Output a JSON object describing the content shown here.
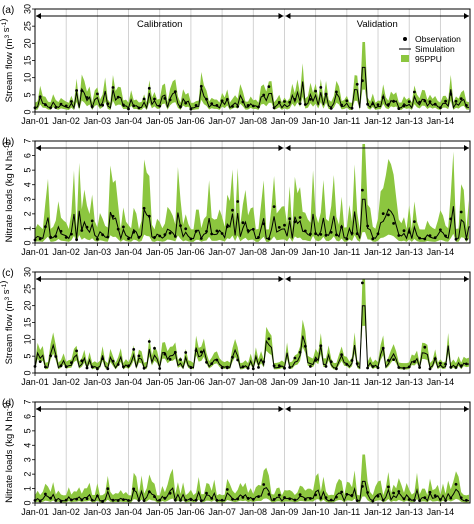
{
  "legend": {
    "observation": "Observation",
    "simulation": "Simulation",
    "ppu": "95PPU"
  },
  "periods": {
    "calibration": "Calibration",
    "validation": "Validation"
  },
  "colors": {
    "band": "#8cc63f",
    "line": "#000000",
    "obs": "#000000",
    "vgrid": "#c8c8c8"
  },
  "chart_data": [
    {
      "panel_label": "(a)",
      "type": "line",
      "ylabel_main": "Stream flow (m",
      "ylabel_sup": "3",
      "ylabel_mid": " s",
      "ylabel_sup2": "-1",
      "ylabel_end": ")",
      "ylim": [
        0,
        30
      ],
      "yticks": [
        "0",
        "5",
        "10",
        "15",
        "20",
        "25",
        "30"
      ],
      "xticks": [
        "Jan-01",
        "Jan-02",
        "Jan-03",
        "Jan-04",
        "Jan-05",
        "Jan-06",
        "Jan-07",
        "Jan-08",
        "Jan-09",
        "Jan-10",
        "Jan-11",
        "Jan-12",
        "Jan-13",
        "Jan-14"
      ],
      "xrange_years": [
        2001,
        2014.95
      ],
      "split_year": 2009,
      "model": {
        "base": 1.2,
        "scale": 4.5,
        "peak": 13,
        "bandLow": 0.5,
        "bandHigh": 1.5,
        "seed": 11
      }
    },
    {
      "panel_label": "(b)",
      "type": "line",
      "ylabel_main": "Nitrate loads (kg N ha",
      "ylabel_sup": "-1",
      "ylabel_mid": "",
      "ylabel_sup2": "",
      "ylabel_end": ")",
      "ylim": [
        0,
        7
      ],
      "yticks": [
        "0",
        "1",
        "2",
        "3",
        "4",
        "5",
        "6",
        "7"
      ],
      "xticks": [
        "Jan-01",
        "Jan-02",
        "Jan-03",
        "Jan-04",
        "Jan-05",
        "Jan-06",
        "Jan-07",
        "Jan-08",
        "Jan-09",
        "Jan-10",
        "Jan-11",
        "Jan-12",
        "Jan-13",
        "Jan-14"
      ],
      "xrange_years": [
        2001,
        2014.95
      ],
      "split_year": 2009,
      "model": {
        "base": 0.3,
        "scale": 1.6,
        "peak": 3,
        "bandLow": 0.25,
        "bandHigh": 2.4,
        "seed": 23
      }
    },
    {
      "panel_label": "(c)",
      "type": "line",
      "ylabel_main": "Stream flow (m",
      "ylabel_sup": "3",
      "ylabel_mid": " s",
      "ylabel_sup2": "-1",
      "ylabel_end": ")",
      "ylim": [
        0,
        30
      ],
      "yticks": [
        "0",
        "5",
        "10",
        "15",
        "20",
        "25",
        "30"
      ],
      "xticks": [
        "Jan-01",
        "Jan-02",
        "Jan-03",
        "Jan-04",
        "Jan-05",
        "Jan-06",
        "Jan-07",
        "Jan-08",
        "Jan-09",
        "Jan-10",
        "Jan-11",
        "Jan-12",
        "Jan-13",
        "Jan-14"
      ],
      "xrange_years": [
        2001,
        2014.95
      ],
      "split_year": 2009,
      "model": {
        "base": 1.5,
        "scale": 6,
        "peak": 20,
        "bandLow": 0.7,
        "bandHigh": 1.35,
        "seed": 37
      }
    },
    {
      "panel_label": "(d)",
      "type": "line",
      "ylabel_main": "Nitrate loads (kg N ha",
      "ylabel_sup": "-1",
      "ylabel_mid": "",
      "ylabel_sup2": "",
      "ylabel_end": ")",
      "ylim": [
        0,
        7
      ],
      "yticks": [
        "0",
        "1",
        "2",
        "3",
        "4",
        "5",
        "6",
        "7"
      ],
      "xticks": [
        "Jan-01",
        "Jan-02",
        "Jan-03",
        "Jan-04",
        "Jan-05",
        "Jan-06",
        "Jan-07",
        "Jan-08",
        "Jan-09",
        "Jan-10",
        "Jan-11",
        "Jan-12",
        "Jan-13",
        "Jan-14"
      ],
      "xrange_years": [
        2001,
        2014.95
      ],
      "split_year": 2009,
      "model": {
        "base": 0.15,
        "scale": 0.75,
        "peak": 1.5,
        "bandLow": 0.3,
        "bandHigh": 2.1,
        "seed": 51
      }
    }
  ]
}
